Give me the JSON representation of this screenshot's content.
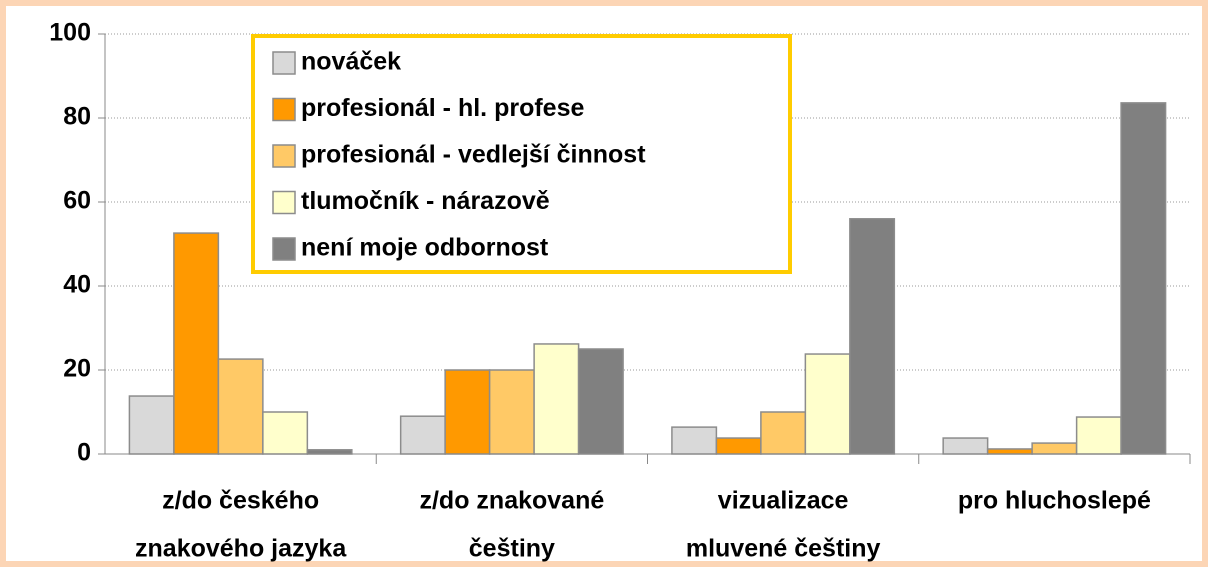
{
  "chart_data": {
    "type": "bar",
    "categories": [
      [
        "z/do českého",
        "znakového jazyka"
      ],
      [
        "z/do znakované",
        "češtiny"
      ],
      [
        "vizualizace",
        "mluvené češtiny"
      ],
      [
        "pro hluchoslepé"
      ]
    ],
    "series": [
      {
        "name": "nováček",
        "color": "#d9d9d9",
        "values": [
          13.8,
          9,
          6.4,
          3.8
        ]
      },
      {
        "name": "profesionál - hl. profese",
        "color": "#ff9900",
        "values": [
          52.6,
          20,
          3.8,
          1.2
        ]
      },
      {
        "name": "profesionál - vedlejší činnost",
        "color": "#ffc966",
        "values": [
          22.6,
          20,
          10,
          2.6
        ]
      },
      {
        "name": "tlumočník - nárazově",
        "color": "#ffffcc",
        "values": [
          10,
          26.2,
          23.8,
          8.8
        ]
      },
      {
        "name": "není moje odbornost",
        "color": "#808080",
        "values": [
          1,
          25,
          56,
          83.6
        ]
      }
    ],
    "ylim": [
      0,
      100
    ],
    "yticks": [
      0,
      20,
      40,
      60,
      80,
      100
    ],
    "grid": true,
    "legend": "upper left"
  }
}
